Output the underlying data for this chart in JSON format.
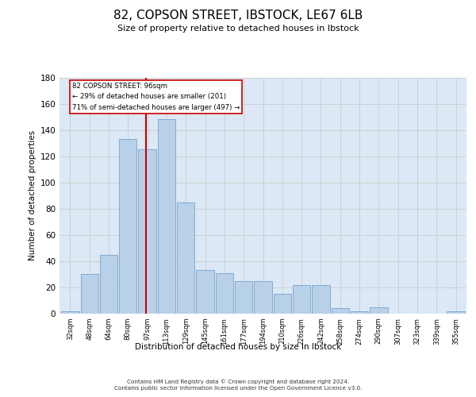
{
  "title_line1": "82, COPSON STREET, IBSTOCK, LE67 6LB",
  "title_line2": "Size of property relative to detached houses in Ibstock",
  "xlabel": "Distribution of detached houses by size in Ibstock",
  "ylabel": "Number of detached properties",
  "bar_labels": [
    "32sqm",
    "48sqm",
    "64sqm",
    "80sqm",
    "97sqm",
    "113sqm",
    "129sqm",
    "145sqm",
    "161sqm",
    "177sqm",
    "194sqm",
    "210sqm",
    "226sqm",
    "242sqm",
    "258sqm",
    "274sqm",
    "290sqm",
    "307sqm",
    "323sqm",
    "339sqm",
    "355sqm"
  ],
  "bar_values": [
    2,
    30,
    45,
    133,
    125,
    148,
    85,
    33,
    31,
    25,
    25,
    15,
    22,
    22,
    4,
    2,
    5,
    0,
    0,
    0,
    2
  ],
  "bar_color": "#b8d0e8",
  "bar_edgecolor": "#6699cc",
  "vline_color": "#cc0000",
  "annotation_box_edgecolor": "#cc0000",
  "annotation_box_facecolor": "#ffffff",
  "ylim": [
    0,
    180
  ],
  "yticks": [
    0,
    20,
    40,
    60,
    80,
    100,
    120,
    140,
    160,
    180
  ],
  "grid_color": "#cccccc",
  "plot_bg_color": "#dce8f5",
  "footer_line1": "Contains HM Land Registry data © Crown copyright and database right 2024.",
  "footer_line2": "Contains public sector information licensed under the Open Government Licence v3.0.",
  "property_line_label": "82 COPSON STREET: 96sqm",
  "annotation_line2": "← 29% of detached houses are smaller (201)",
  "annotation_line3": "71% of semi-detached houses are larger (497) →",
  "vline_x": 96,
  "n_bins": 21,
  "bin_width": 16
}
